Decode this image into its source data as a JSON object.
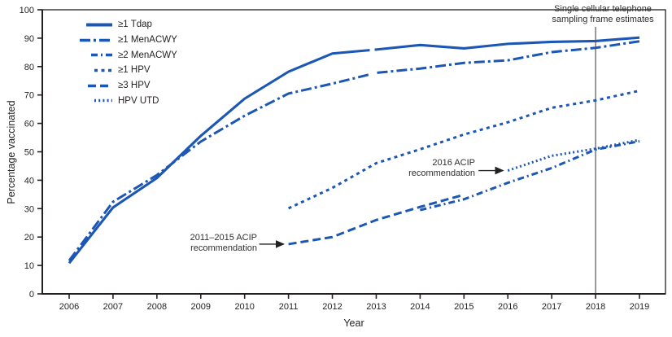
{
  "chart_data": {
    "type": "line",
    "title": "",
    "xlabel": "Year",
    "ylabel": "Percentage vaccinated",
    "ylim": [
      0,
      100
    ],
    "ytick_step": 10,
    "x_ticks": [
      2006,
      2007,
      2008,
      2009,
      2010,
      2011,
      2012,
      2013,
      2014,
      2015,
      2016,
      2017,
      2018,
      2019
    ],
    "grid": false,
    "legend_position": "top-left",
    "line_color": "#1c57b5",
    "axis_color": "#231f20",
    "annotation_color": "#2f2f2f",
    "series": [
      {
        "id": "tdap",
        "name": "≥1 Tdap",
        "style": "solid",
        "x": [
          2006,
          2007,
          2008,
          2009,
          2010,
          2011,
          2012,
          2013,
          2014,
          2015,
          2016,
          2017,
          2018,
          2019
        ],
        "values": [
          10.8,
          30.4,
          40.8,
          55.6,
          68.7,
          78.2,
          84.6,
          86.0,
          87.6,
          86.4,
          88.0,
          88.7,
          89.0,
          90.2
        ]
      },
      {
        "id": "men1",
        "name": "≥1 MenACWY",
        "style": "long-dash-dot",
        "x": [
          2006,
          2007,
          2008,
          2009,
          2010,
          2011,
          2012,
          2013,
          2014,
          2015,
          2016,
          2017,
          2018,
          2019
        ],
        "values": [
          11.7,
          32.4,
          41.8,
          53.6,
          62.7,
          70.5,
          74.0,
          77.8,
          79.3,
          81.3,
          82.2,
          85.1,
          86.6,
          88.9
        ]
      },
      {
        "id": "men2",
        "name": "≥2 MenACWY",
        "style": "dash-dot",
        "x": [
          2014,
          2015,
          2016,
          2017,
          2018,
          2019
        ],
        "values": [
          29.5,
          33.3,
          39.1,
          44.3,
          50.8,
          53.7
        ]
      },
      {
        "id": "hpv1",
        "name": "≥1 HPV",
        "style": "short-dash",
        "x": [
          2011,
          2012,
          2013,
          2014,
          2015,
          2016,
          2017,
          2018,
          2019
        ],
        "values": [
          30.1,
          37.3,
          46.0,
          50.9,
          56.1,
          60.4,
          65.5,
          68.1,
          71.5
        ]
      },
      {
        "id": "hpv3",
        "name": "≥3 HPV",
        "style": "medium-dash",
        "x": [
          2011,
          2012,
          2013,
          2014,
          2015
        ],
        "values": [
          17.5,
          20.0,
          26.0,
          30.6,
          34.9
        ]
      },
      {
        "id": "hpvutd",
        "name": "HPV UTD",
        "style": "dotted",
        "x": [
          2016,
          2017,
          2018,
          2019
        ],
        "values": [
          43.4,
          48.6,
          51.1,
          54.2
        ]
      }
    ],
    "annotations": [
      {
        "id": "sampling-frame",
        "lines": [
          "Single cellular telephone",
          "sampling frame estimates"
        ],
        "vline_x": 2018
      },
      {
        "id": "acip-2016",
        "lines": [
          "2016 ACIP",
          "recommendation"
        ],
        "arrow_to": {
          "x": 2016,
          "y": 43.4
        }
      },
      {
        "id": "acip-2011-2015",
        "lines": [
          "2011–2015 ACIP",
          "recommendation"
        ],
        "arrow_to": {
          "x": 2011,
          "y": 17.5
        }
      }
    ]
  }
}
